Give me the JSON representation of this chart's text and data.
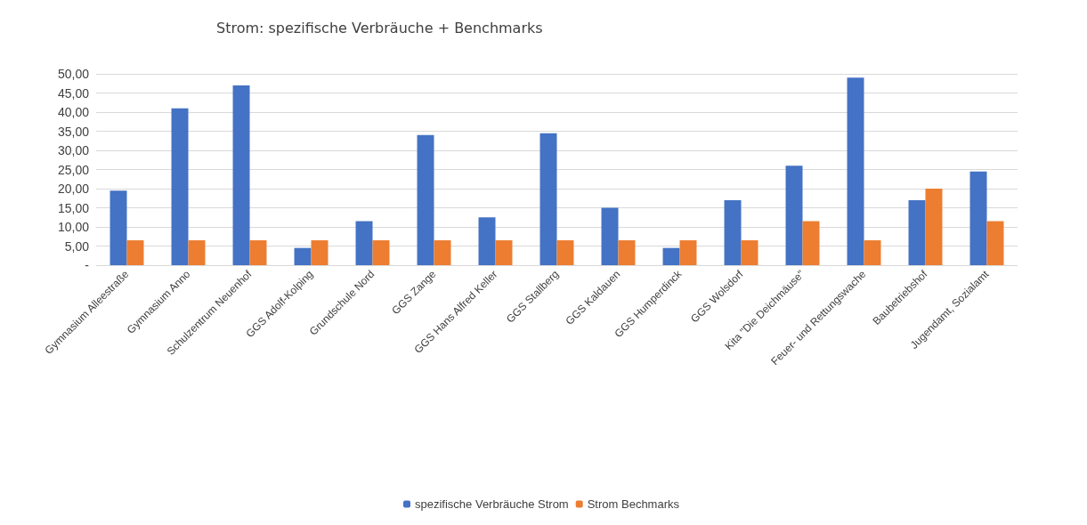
{
  "chart_data": {
    "type": "bar",
    "title": "Strom: spezifische Verbräuche + Benchmarks",
    "categories": [
      "Gymnasium Alleestraße",
      "Gymnasium Anno",
      "Schulzentrum Neuenhof",
      "GGS Adolf-Kolping",
      "Grundschule Nord",
      "GGS Zange",
      "GGS Hans Alfred Keller",
      "GGS Stallberg",
      "GGS Kaldauen",
      "GGS Humperdinck",
      "GGS Wolsdorf",
      "Kita \"Die Deichmäuse\"",
      "Feuer- und Rettungswache",
      "Baubetriebshof",
      "Jugendamt, Sozialamt"
    ],
    "series": [
      {
        "name": "spezifische Verbräuche Strom",
        "color": "#4472c4",
        "values": [
          19.5,
          41,
          47,
          4.5,
          11.5,
          34,
          12.5,
          34.5,
          15,
          4.5,
          17,
          26,
          49,
          17,
          24.5
        ]
      },
      {
        "name": "Strom Bechmarks",
        "color": "#ed7d31",
        "values": [
          6.5,
          6.5,
          6.5,
          6.5,
          6.5,
          6.5,
          6.5,
          6.5,
          6.5,
          6.5,
          6.5,
          11.5,
          6.5,
          20,
          11.5
        ]
      }
    ],
    "ylim": [
      0,
      50
    ],
    "yticks": [
      {
        "value": 0,
        "label": "-"
      },
      {
        "value": 5,
        "label": "5,00"
      },
      {
        "value": 10,
        "label": "10,00"
      },
      {
        "value": 15,
        "label": "15,00"
      },
      {
        "value": 20,
        "label": "20,00"
      },
      {
        "value": 25,
        "label": "25,00"
      },
      {
        "value": 30,
        "label": "30,00"
      },
      {
        "value": 35,
        "label": "35,00"
      },
      {
        "value": 40,
        "label": "40,00"
      },
      {
        "value": 45,
        "label": "45,00"
      },
      {
        "value": 50,
        "label": "50,00"
      }
    ],
    "grid": "y",
    "legend": "bottom"
  }
}
